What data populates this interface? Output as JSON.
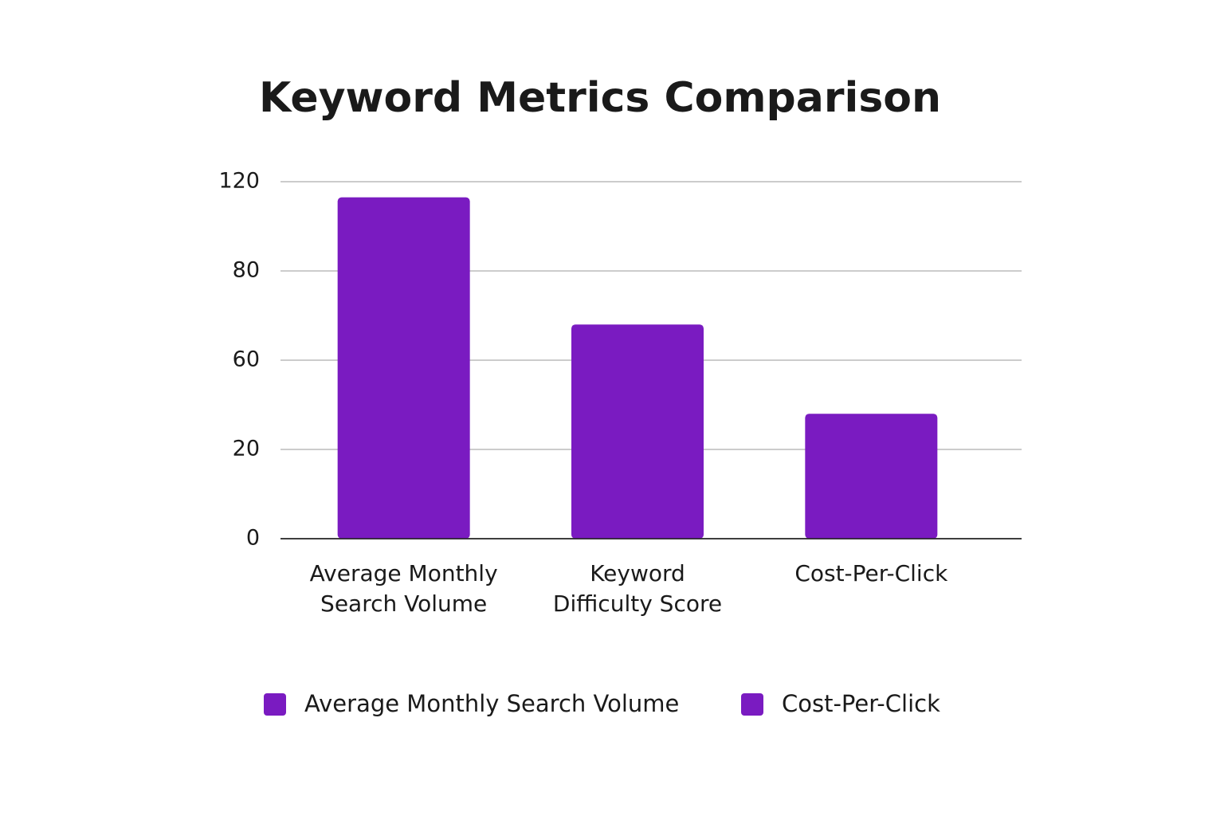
{
  "chart_data": {
    "type": "bar",
    "title": "Keyword Metrics Comparison",
    "categories": [
      "Average Monthly Search Volume",
      "Keyword Difficulty Score",
      "Cost-Per-Click"
    ],
    "values": [
      113,
      68,
      36
    ],
    "color": "#7a1bc1",
    "ylim": [
      0,
      120
    ],
    "yticks": [
      0,
      20,
      60,
      80,
      120
    ],
    "grid": true,
    "legend": [
      "Average Monthly Search Volume",
      "Cost-Per-Click"
    ]
  }
}
